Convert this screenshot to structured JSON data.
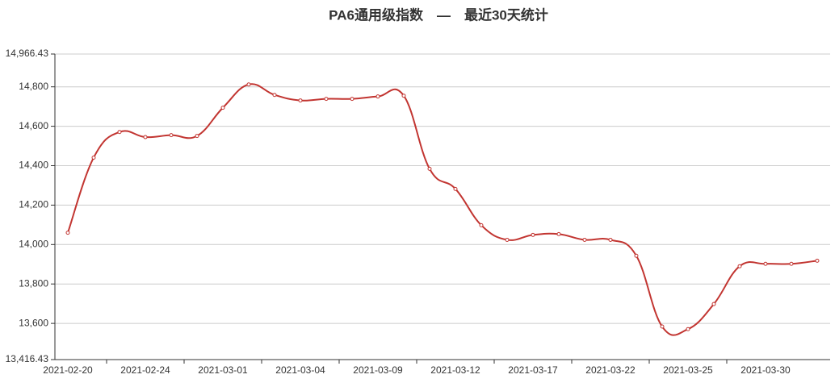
{
  "chart_data": {
    "type": "line",
    "title": "PA6通用级指数　—　最近30天统计",
    "categories": [
      "2021-02-20",
      null,
      null,
      "2021-02-24",
      null,
      null,
      "2021-03-01",
      null,
      null,
      "2021-03-04",
      null,
      null,
      "2021-03-09",
      null,
      null,
      "2021-03-12",
      null,
      null,
      "2021-03-17",
      null,
      null,
      "2021-03-22",
      null,
      null,
      "2021-03-25",
      null,
      null,
      "2021-03-30",
      null,
      null
    ],
    "series": [
      {
        "color": "#c23531",
        "values": [
          14060,
          14441,
          14571,
          14545,
          14555,
          14551,
          14694,
          14812,
          14759,
          14731,
          14739,
          14739,
          14751,
          14755,
          14384,
          14282,
          14098,
          14024,
          14049,
          14053,
          14024,
          14024,
          13943,
          13584,
          13571,
          13698,
          13890,
          13902,
          13902,
          13918
        ]
      }
    ],
    "ylim": [
      13416.43,
      14966.43
    ],
    "yticks": [
      {
        "value": 13416.43,
        "label": "13,416.43"
      },
      {
        "value": 13600,
        "label": "13,600"
      },
      {
        "value": 13800,
        "label": "13,800"
      },
      {
        "value": 14000,
        "label": "14,000"
      },
      {
        "value": 14200,
        "label": "14,200"
      },
      {
        "value": 14400,
        "label": "14,400"
      },
      {
        "value": 14600,
        "label": "14,600"
      },
      {
        "value": 14800,
        "label": "14,800"
      },
      {
        "value": 14966.43,
        "label": "14,966.43"
      }
    ],
    "grid": true,
    "smooth": true
  }
}
